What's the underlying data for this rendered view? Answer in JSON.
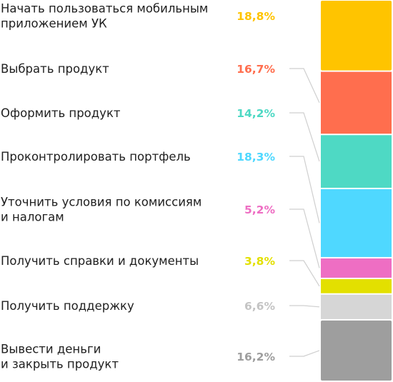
{
  "chart_data": {
    "type": "bar",
    "orientation": "stacked-vertical",
    "grid": false,
    "legend": "none",
    "categories": [
      "Начать пользоваться мобильным приложением УК",
      "Выбрать продукт",
      "Оформить продукт",
      "Проконтролировать портфель",
      "Уточнить условия по комиссиям и налогам",
      "Получить справки и документы",
      "Получить поддержку",
      "Вывести деньги и закрыть продукт"
    ],
    "label_lines": [
      [
        "Начать пользоваться мобильным",
        "приложением УК"
      ],
      [
        "Выбрать продукт"
      ],
      [
        "Оформить продукт"
      ],
      [
        "Проконтролировать портфель"
      ],
      [
        "Уточнить условия по комиссиям",
        "и налогам"
      ],
      [
        "Получить справки и документы"
      ],
      [
        "Получить поддержку"
      ],
      [
        "Вывести деньги",
        "и закрыть продукт"
      ]
    ],
    "values": [
      18.8,
      16.7,
      14.2,
      18.3,
      5.2,
      3.8,
      6.6,
      16.2
    ],
    "value_labels": [
      "18,8%",
      "16,7%",
      "14,2%",
      "18,3%",
      "5,2%",
      "3,8%",
      "6,6%",
      "16,2%"
    ],
    "colors": [
      "#FFC400",
      "#FF6E4E",
      "#4ED9C4",
      "#4FD8FF",
      "#EE6EC3",
      "#E3E000",
      "#D6D6D6",
      "#9E9E9E"
    ],
    "label_colors": [
      "#FFC400",
      "#FF6E4E",
      "#4ED9C4",
      "#4FD8FF",
      "#EE6EC3",
      "#E3E000",
      "#C4C4C4",
      "#9E9E9E"
    ]
  }
}
